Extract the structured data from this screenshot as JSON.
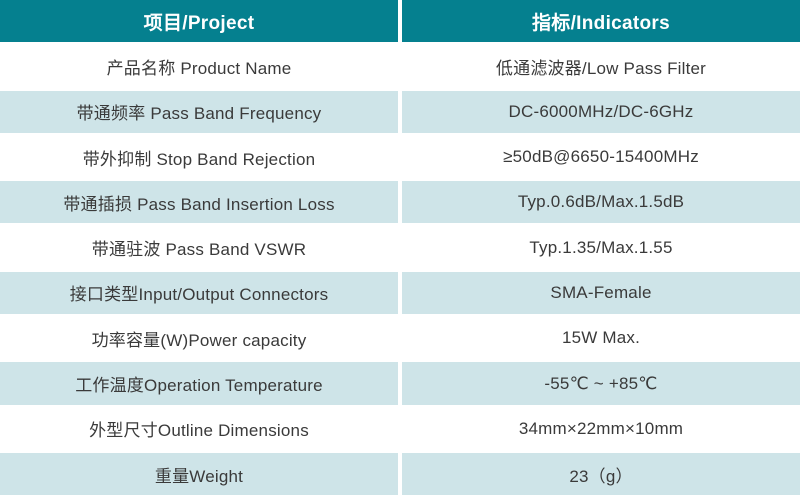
{
  "colors": {
    "header_bg": "#05808F",
    "header_text": "#ffffff",
    "row_alt_bg": "#cee4e8",
    "text": "#3a3a3a"
  },
  "table": {
    "header": {
      "project": "项目/Project",
      "indicators": "指标/Indicators"
    },
    "rows": [
      {
        "project": "产品名称 Product Name",
        "indicator": "低通滤波器/Low Pass Filter"
      },
      {
        "project": "带通频率 Pass Band Frequency",
        "indicator": "DC-6000MHz/DC-6GHz"
      },
      {
        "project": "带外抑制 Stop Band Rejection",
        "indicator": "≥50dB@6650-15400MHz"
      },
      {
        "project": "带通插损 Pass Band Insertion Loss",
        "indicator": "Typ.0.6dB/Max.1.5dB"
      },
      {
        "project": "带通驻波 Pass Band VSWR",
        "indicator": "Typ.1.35/Max.1.55"
      },
      {
        "project": "接口类型Input/Output Connectors",
        "indicator": "SMA-Female"
      },
      {
        "project": "功率容量(W)Power capacity",
        "indicator": "15W Max."
      },
      {
        "project": "工作温度Operation Temperature",
        "indicator": "-55℃ ~ +85℃"
      },
      {
        "project": "外型尺寸Outline Dimensions",
        "indicator": "34mm×22mm×10mm"
      },
      {
        "project": "重量Weight",
        "indicator": "23（g）"
      }
    ]
  }
}
